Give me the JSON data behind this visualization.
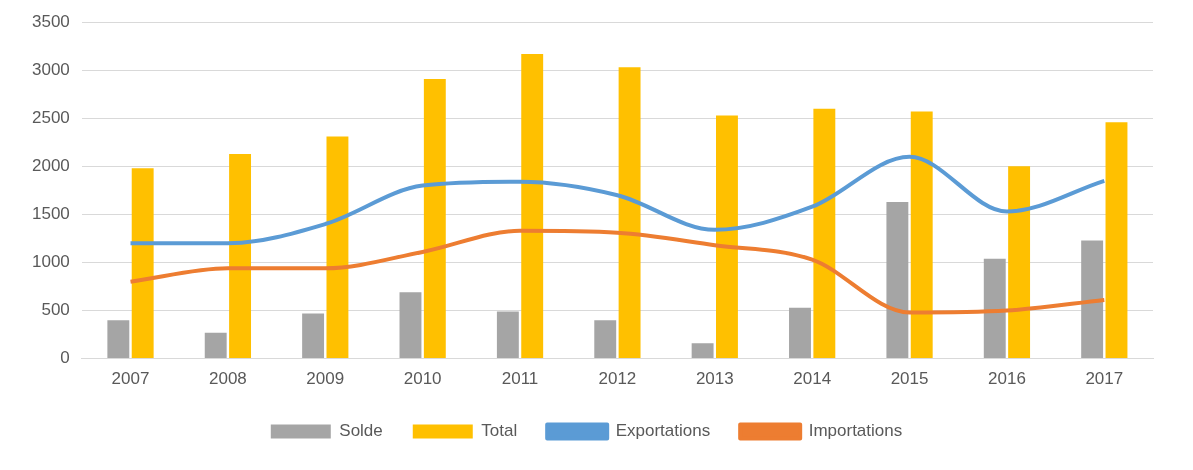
{
  "chart_data": {
    "type": "bar",
    "categories": [
      "2007",
      "2008",
      "2009",
      "2010",
      "2011",
      "2012",
      "2013",
      "2014",
      "2015",
      "2016",
      "2017"
    ],
    "series": [
      {
        "name": "Solde",
        "color": "#a5a5a5",
        "values": [
          400,
          270,
          470,
          690,
          490,
          400,
          160,
          530,
          1630,
          1040,
          1230
        ]
      },
      {
        "name": "Total",
        "color": "#ffc000",
        "values": [
          1980,
          2130,
          2310,
          2910,
          3170,
          3030,
          2530,
          2600,
          2570,
          2000,
          2460
        ]
      },
      {
        "name": "Exportations",
        "type": "line",
        "color": "#5b9bd5",
        "values": [
          1200,
          1200,
          1400,
          1800,
          1840,
          1700,
          1340,
          1580,
          2100,
          1530,
          1850
        ]
      },
      {
        "name": "Importations",
        "type": "line",
        "color": "#ed7d31",
        "values": [
          800,
          940,
          940,
          1110,
          1330,
          1310,
          1180,
          1030,
          480,
          500,
          610
        ]
      }
    ],
    "ylim": [
      0,
      3500
    ],
    "yticks": [
      0,
      500,
      1000,
      1500,
      2000,
      2500,
      3000,
      3500
    ],
    "grid": "y",
    "legend": "bottom",
    "marker": "none",
    "line_style": "solid"
  }
}
